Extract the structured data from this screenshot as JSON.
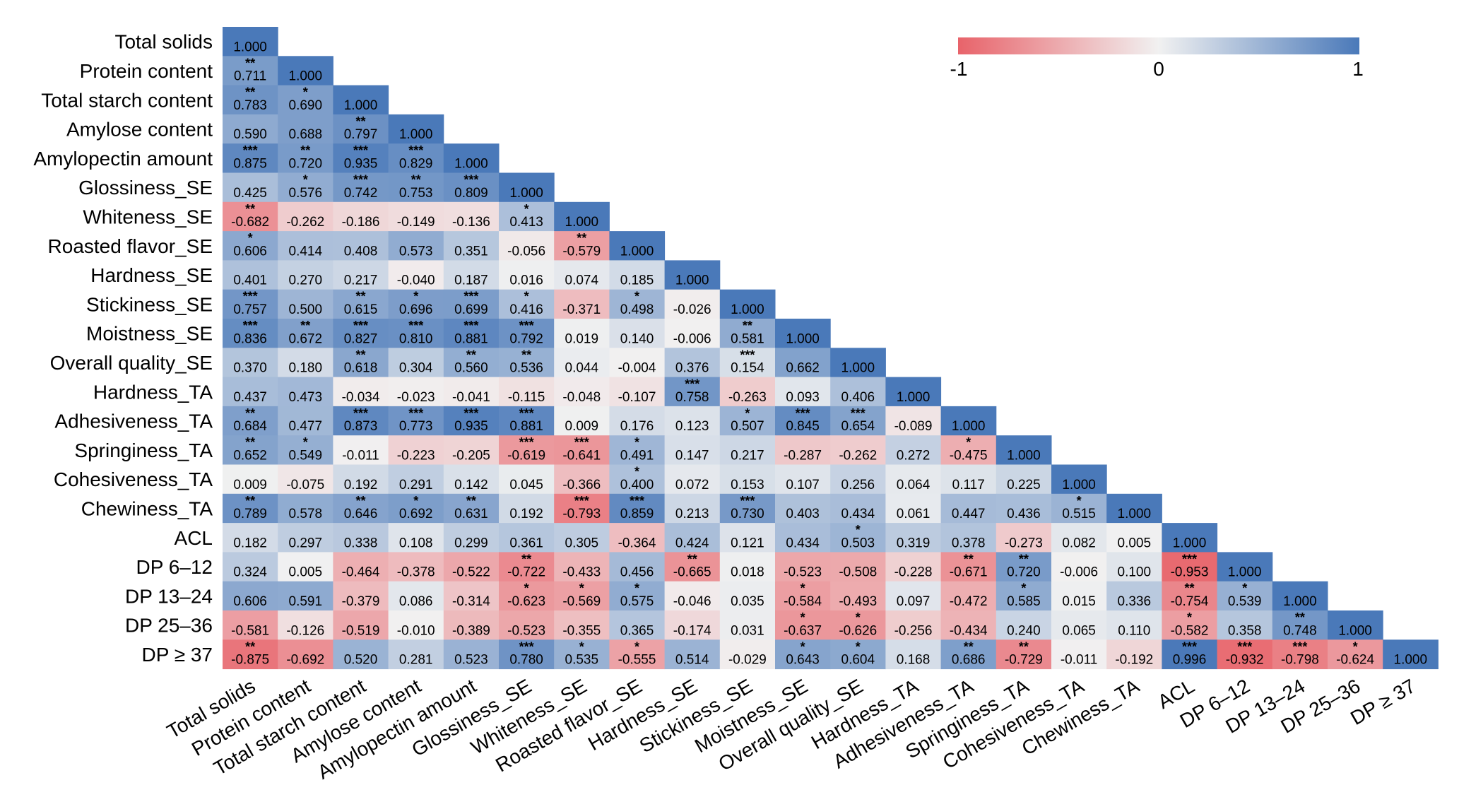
{
  "chart_data": {
    "type": "heatmap",
    "variables": [
      "Total solids",
      "Protein content",
      "Total starch content",
      "Amylose content",
      "Amylopectin amount",
      "Glossiness_SE",
      "Whiteness_SE",
      "Roasted flavor_SE",
      "Hardness_SE",
      "Stickiness_SE",
      "Moistness_SE",
      "Overall quality_SE",
      "Hardness_TA",
      "Adhesiveness_TA",
      "Springiness_TA",
      "Cohesiveness_TA",
      "Chewiness_TA",
      "ACL",
      "DP 6–12",
      "DP 13–24",
      "DP 25–36",
      "DP ≥ 37"
    ],
    "values": [
      [
        1.0
      ],
      [
        0.711,
        1.0
      ],
      [
        0.783,
        0.69,
        1.0
      ],
      [
        0.59,
        0.688,
        0.797,
        1.0
      ],
      [
        0.875,
        0.72,
        0.935,
        0.829,
        1.0
      ],
      [
        0.425,
        0.576,
        0.742,
        0.753,
        0.809,
        1.0
      ],
      [
        -0.682,
        -0.262,
        -0.186,
        -0.149,
        -0.136,
        0.413,
        1.0
      ],
      [
        0.606,
        0.414,
        0.408,
        0.573,
        0.351,
        -0.056,
        -0.579,
        1.0
      ],
      [
        0.401,
        0.27,
        0.217,
        -0.04,
        0.187,
        0.016,
        0.074,
        0.185,
        1.0
      ],
      [
        0.757,
        0.5,
        0.615,
        0.696,
        0.699,
        0.416,
        -0.371,
        0.498,
        -0.026,
        1.0
      ],
      [
        0.836,
        0.672,
        0.827,
        0.81,
        0.881,
        0.792,
        0.019,
        0.14,
        -0.006,
        0.581,
        1.0
      ],
      [
        0.37,
        0.18,
        0.618,
        0.304,
        0.56,
        0.536,
        0.044,
        -0.004,
        0.376,
        0.154,
        0.662,
        1.0
      ],
      [
        0.437,
        0.473,
        -0.034,
        -0.023,
        -0.041,
        -0.115,
        -0.048,
        -0.107,
        0.758,
        -0.263,
        0.093,
        0.406,
        1.0
      ],
      [
        0.684,
        0.477,
        0.873,
        0.773,
        0.935,
        0.881,
        0.009,
        0.176,
        0.123,
        0.507,
        0.845,
        0.654,
        -0.089,
        1.0
      ],
      [
        0.652,
        0.549,
        -0.011,
        -0.223,
        -0.205,
        -0.619,
        -0.641,
        0.491,
        0.147,
        0.217,
        -0.287,
        -0.262,
        0.272,
        -0.475,
        1.0
      ],
      [
        0.009,
        -0.075,
        0.192,
        0.291,
        0.142,
        0.045,
        -0.366,
        0.4,
        0.072,
        0.153,
        0.107,
        0.256,
        0.064,
        0.117,
        0.225,
        1.0
      ],
      [
        0.789,
        0.578,
        0.646,
        0.692,
        0.631,
        0.192,
        -0.793,
        0.859,
        0.213,
        0.73,
        0.403,
        0.434,
        0.061,
        0.447,
        0.436,
        0.515,
        1.0
      ],
      [
        0.182,
        0.297,
        0.338,
        0.108,
        0.299,
        0.361,
        0.305,
        -0.364,
        0.424,
        0.121,
        0.434,
        0.503,
        0.319,
        0.378,
        -0.273,
        0.082,
        0.005,
        1.0
      ],
      [
        0.324,
        0.005,
        -0.464,
        -0.378,
        -0.522,
        -0.722,
        -0.433,
        0.456,
        -0.665,
        0.018,
        -0.523,
        -0.508,
        -0.228,
        -0.671,
        0.72,
        -0.006,
        0.1,
        -0.953,
        1.0
      ],
      [
        0.606,
        0.591,
        -0.379,
        0.086,
        -0.314,
        -0.623,
        -0.569,
        0.575,
        -0.046,
        0.035,
        -0.584,
        -0.493,
        0.097,
        -0.472,
        0.585,
        0.015,
        0.336,
        -0.754,
        0.539,
        1.0
      ],
      [
        -0.581,
        -0.126,
        -0.519,
        -0.01,
        -0.389,
        -0.523,
        -0.355,
        0.365,
        -0.174,
        0.031,
        -0.637,
        -0.626,
        -0.256,
        -0.434,
        0.24,
        0.065,
        0.11,
        -0.582,
        0.358,
        0.748,
        1.0
      ],
      [
        -0.875,
        -0.692,
        0.52,
        0.281,
        0.523,
        0.78,
        0.535,
        -0.555,
        0.514,
        -0.029,
        0.643,
        0.604,
        0.168,
        0.686,
        -0.729,
        -0.011,
        -0.192,
        0.996,
        -0.932,
        -0.798,
        -0.624,
        1.0
      ]
    ],
    "significance": [
      [
        ""
      ],
      [
        "**",
        ""
      ],
      [
        "**",
        "*",
        ""
      ],
      [
        "",
        "",
        "**",
        ""
      ],
      [
        "***",
        "**",
        "***",
        "***",
        ""
      ],
      [
        "",
        "*",
        "***",
        "**",
        "***",
        ""
      ],
      [
        "**",
        "",
        "",
        "",
        "",
        "*",
        ""
      ],
      [
        "*",
        "",
        "",
        "",
        "",
        "",
        "**",
        ""
      ],
      [
        "",
        "",
        "",
        "",
        "",
        "",
        "",
        "",
        ""
      ],
      [
        "***",
        "",
        "**",
        "*",
        "***",
        "*",
        "",
        "*",
        "",
        ""
      ],
      [
        "***",
        "**",
        "***",
        "***",
        "***",
        "***",
        "",
        "",
        "",
        "**",
        ""
      ],
      [
        "",
        "",
        "**",
        "",
        "**",
        "**",
        "",
        "",
        "",
        "***",
        "",
        ""
      ],
      [
        "",
        "",
        "",
        "",
        "",
        "",
        "",
        "",
        "***",
        "",
        "",
        "",
        ""
      ],
      [
        "**",
        "",
        "***",
        "***",
        "***",
        "***",
        "",
        "",
        "",
        "*",
        "***",
        "***",
        "",
        ""
      ],
      [
        "**",
        "*",
        "",
        "",
        "",
        "***",
        "***",
        "*",
        "",
        "",
        "",
        "",
        "",
        "*",
        ""
      ],
      [
        "",
        "",
        "",
        "",
        "",
        "",
        "",
        "*",
        "",
        "",
        "",
        "",
        "",
        "",
        "",
        ""
      ],
      [
        "**",
        "",
        "**",
        "*",
        "**",
        "",
        "***",
        "***",
        "",
        "***",
        "",
        "",
        "",
        "",
        "",
        "*",
        ""
      ],
      [
        "",
        "",
        "",
        "",
        "",
        "",
        "",
        "",
        "",
        "",
        "",
        "*",
        "",
        "",
        "",
        "",
        "",
        ""
      ],
      [
        "",
        "",
        "",
        "",
        "",
        "**",
        "",
        "",
        "**",
        "",
        "",
        "",
        "",
        "**",
        "**",
        "",
        "",
        "***",
        ""
      ],
      [
        "",
        "",
        "",
        "",
        "",
        "*",
        "*",
        "*",
        "",
        "",
        "*",
        "",
        "",
        "",
        "*",
        "",
        "",
        "**",
        "*",
        ""
      ],
      [
        "",
        "",
        "",
        "",
        "",
        "",
        "",
        "",
        "",
        "",
        "*",
        "*",
        "",
        "",
        "",
        "",
        "",
        "*",
        "",
        "**",
        ""
      ],
      [
        "**",
        "",
        "",
        "",
        "",
        "***",
        "*",
        "*",
        "",
        "",
        "*",
        "*",
        "",
        "**",
        "**",
        "",
        "",
        "***",
        "***",
        "***",
        "*",
        ""
      ]
    ],
    "colorbar": {
      "min_label": "-1",
      "mid_label": "0",
      "max_label": "1",
      "low_color": "#e8636a",
      "mid_color": "#f1f1f1",
      "high_color": "#4a79b9"
    }
  }
}
